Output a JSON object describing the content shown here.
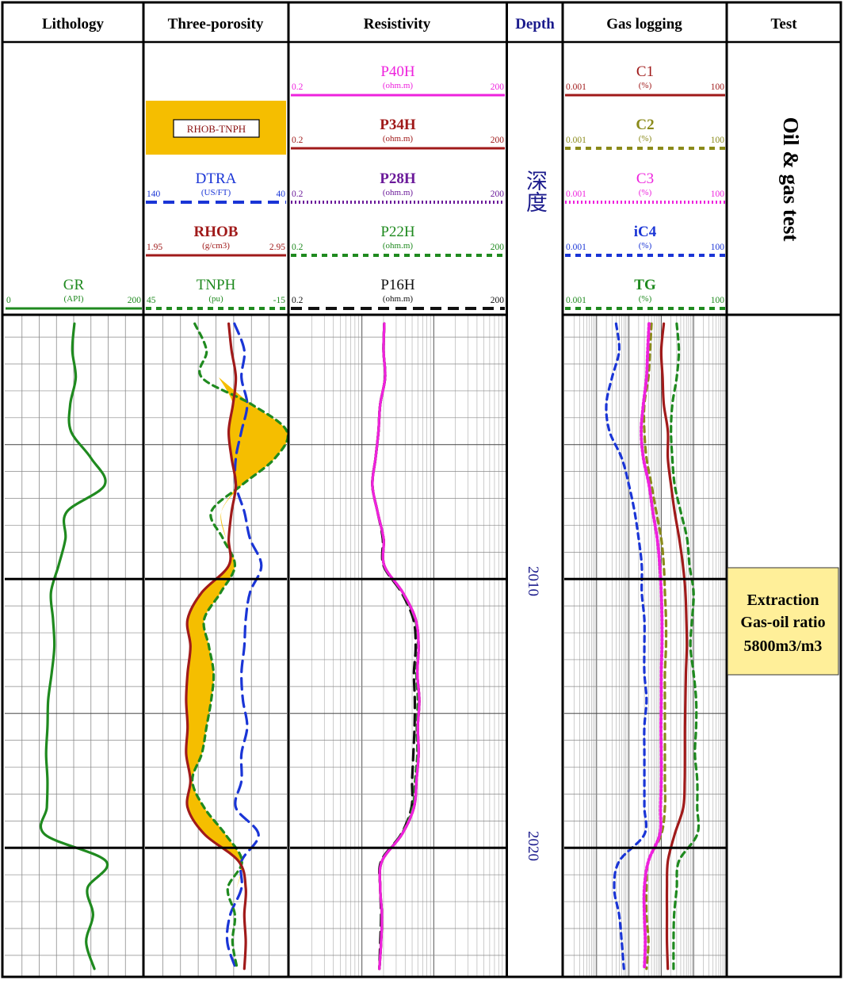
{
  "tracks": {
    "lithology": "Lithology",
    "porosity": "Three-porosity",
    "resistivity": "Resistivity",
    "depth": "Depth",
    "gas": "Gas logging",
    "test": "Test"
  },
  "depth_label": "深度",
  "depth_ticks": [
    "2010",
    "2020"
  ],
  "fill_label": "RHOB-TNPH",
  "test_vertical_text": "Oil & gas test",
  "test_box": {
    "line1": "Extraction",
    "line2": "Gas-oil ratio",
    "line3": "5800m3/m3"
  },
  "colors": {
    "frame": "#000000",
    "grid": "#888888",
    "depth_text": "#1a1a8c",
    "fill": "#f5be00",
    "test_box": "#ffef99"
  },
  "curve_headers": {
    "GR": {
      "name": "GR",
      "unit": "(API)",
      "left": "0",
      "right": "200",
      "color": "#1f8a1f",
      "dash": "solid"
    },
    "DTRA": {
      "name": "DTRA",
      "unit": "(US/FT)",
      "left": "140",
      "right": "40",
      "color": "#1a35d6",
      "dash": "long"
    },
    "RHOB": {
      "name": "RHOB",
      "unit": "(g/cm3)",
      "left": "1.95",
      "right": "2.95",
      "color": "#a01a1a",
      "dash": "solid"
    },
    "TNPH": {
      "name": "TNPH",
      "unit": "(pu)",
      "left": "45",
      "right": "-15",
      "color": "#1f8a1f",
      "dash": "short"
    },
    "P40H": {
      "name": "P40H",
      "unit": "(ohm.m)",
      "left": "0.2",
      "right": "200",
      "color": "#ee22dd",
      "dash": "solid"
    },
    "P34H": {
      "name": "P34H",
      "unit": "(ohm.m)",
      "left": "0.2",
      "right": "200",
      "color": "#a01a1a",
      "dash": "solid"
    },
    "P28H": {
      "name": "P28H",
      "unit": "(ohm.m)",
      "left": "0.2",
      "right": "200",
      "color": "#6b1a9a",
      "dash": "dot"
    },
    "P22H": {
      "name": "P22H",
      "unit": "(ohm.m)",
      "left": "0.2",
      "right": "200",
      "color": "#1f8a1f",
      "dash": "short"
    },
    "P16H": {
      "name": "P16H",
      "unit": "(ohm.m)",
      "left": "0.2",
      "right": "200",
      "color": "#111111",
      "dash": "long"
    },
    "C1": {
      "name": "C1",
      "unit": "(%)",
      "left": "0.001",
      "right": "100",
      "color": "#a01a1a",
      "dash": "solid"
    },
    "C2": {
      "name": "C2",
      "unit": "(%)",
      "left": "0.001",
      "right": "100",
      "color": "#8a8a1a",
      "dash": "short"
    },
    "C3": {
      "name": "C3",
      "unit": "(%)",
      "left": "0.001",
      "right": "100",
      "color": "#ee22dd",
      "dash": "dot"
    },
    "iC4": {
      "name": "iC4",
      "unit": "(%)",
      "left": "0.001",
      "right": "100",
      "color": "#1a35d6",
      "dash": "short"
    },
    "TG": {
      "name": "TG",
      "unit": "(%)",
      "left": "0.001",
      "right": "100",
      "color": "#1f8a1f",
      "dash": "short"
    }
  },
  "chart_data": {
    "type": "line",
    "depth_range": [
      2000.2,
      2024.8
    ],
    "depth": [
      2000.5,
      2001.5,
      2002.5,
      2003.5,
      2004.5,
      2005.5,
      2006.5,
      2007.5,
      2008.5,
      2009.5,
      2010.5,
      2011.5,
      2012.5,
      2013.5,
      2014.5,
      2015.5,
      2016.5,
      2017.5,
      2018.5,
      2019.5,
      2020.5,
      2021.5,
      2022.5,
      2023.5,
      2024.5
    ],
    "series": [
      {
        "name": "GR",
        "unit": "API",
        "scale": [
          0,
          200
        ],
        "log": false,
        "values": [
          101,
          98,
          103,
          95,
          96,
          125,
          145,
          90,
          88,
          78,
          67,
          70,
          72,
          68,
          63,
          62,
          60,
          62,
          61,
          58,
          147,
          120,
          128,
          118,
          130
        ]
      },
      {
        "name": "TNPH",
        "unit": "pu",
        "scale": [
          45,
          -15
        ],
        "log": false,
        "values": [
          24,
          19,
          21,
          0,
          -15,
          -10,
          4,
          17,
          12,
          7,
          13,
          20,
          18,
          16,
          17,
          19,
          21,
          25,
          20,
          11,
          4,
          10,
          7,
          8,
          6
        ]
      },
      {
        "name": "DTRA",
        "unit": "US/FT",
        "scale": [
          140,
          40
        ],
        "log": false,
        "values": [
          77,
          70,
          72,
          68,
          72,
          76,
          76,
          70,
          66,
          58,
          66,
          69,
          70,
          72,
          71,
          68,
          72,
          72,
          76,
          60,
          72,
          72,
          80,
          82,
          76
        ]
      },
      {
        "name": "RHOB",
        "unit": "g/cm3",
        "scale": [
          1.95,
          2.95
        ],
        "log": false,
        "values": [
          2.54,
          2.56,
          2.59,
          2.57,
          2.54,
          2.56,
          2.59,
          2.56,
          2.54,
          2.54,
          2.35,
          2.25,
          2.27,
          2.25,
          2.24,
          2.25,
          2.24,
          2.27,
          2.25,
          2.37,
          2.61,
          2.66,
          2.65,
          2.66,
          2.65
        ]
      },
      {
        "name": "P40H",
        "unit": "ohm.m",
        "scale": [
          0.2,
          200
        ],
        "log": true,
        "values": [
          4.1,
          4.0,
          4.2,
          3.6,
          3.4,
          3.1,
          2.8,
          3.3,
          4.0,
          4.1,
          7.4,
          11.2,
          12.3,
          11.8,
          12.6,
          12.0,
          12.3,
          11.5,
          10.6,
          7.2,
          3.8,
          3.6,
          3.8,
          3.7,
          3.5
        ]
      },
      {
        "name": "P34H",
        "unit": "ohm.m",
        "scale": [
          0.2,
          200
        ],
        "log": true,
        "values": [
          4.1,
          4.0,
          4.2,
          3.6,
          3.4,
          3.1,
          2.8,
          3.3,
          4.0,
          4.1,
          7.4,
          11.2,
          12.3,
          11.8,
          12.6,
          12.0,
          12.3,
          11.5,
          10.6,
          7.2,
          3.8,
          3.6,
          3.8,
          3.7,
          3.5
        ]
      },
      {
        "name": "P28H",
        "unit": "ohm.m",
        "scale": [
          0.2,
          200
        ],
        "log": true,
        "values": [
          4.1,
          4.0,
          4.2,
          3.6,
          3.4,
          3.1,
          2.8,
          3.3,
          4.0,
          4.1,
          7.4,
          11.2,
          12.3,
          11.8,
          12.6,
          12.0,
          12.3,
          11.5,
          10.6,
          7.2,
          3.8,
          3.6,
          3.8,
          3.7,
          3.5
        ]
      },
      {
        "name": "P22H",
        "unit": "ohm.m",
        "scale": [
          0.2,
          200
        ],
        "log": true,
        "values": [
          4.1,
          4.0,
          4.2,
          3.6,
          3.4,
          3.1,
          2.8,
          3.3,
          4.0,
          4.1,
          7.3,
          11.0,
          12.1,
          11.5,
          12.0,
          11.6,
          11.8,
          11.0,
          10.2,
          7.1,
          3.8,
          3.6,
          3.8,
          3.7,
          3.5
        ]
      },
      {
        "name": "P16H",
        "unit": "ohm.m",
        "scale": [
          0.2,
          200
        ],
        "log": true,
        "values": [
          4.1,
          4.0,
          4.2,
          3.6,
          3.4,
          3.1,
          2.8,
          3.3,
          3.9,
          4.0,
          7.1,
          10.4,
          11.2,
          10.6,
          10.9,
          10.8,
          10.4,
          10.0,
          9.8,
          7.0,
          3.7,
          3.6,
          3.7,
          3.6,
          3.5
        ]
      },
      {
        "name": "C1",
        "unit": "%",
        "scale": [
          0.001,
          100
        ],
        "log": true,
        "values": [
          1.2,
          1.0,
          1.1,
          1.2,
          1.6,
          1.6,
          2.0,
          2.6,
          3.6,
          4.7,
          5.6,
          6.0,
          6.2,
          5.8,
          5.6,
          5.4,
          5.4,
          5.3,
          4.8,
          2.6,
          1.6,
          1.5,
          1.5,
          1.5,
          1.6
        ]
      },
      {
        "name": "C2",
        "unit": "%",
        "scale": [
          0.001,
          100
        ],
        "log": true,
        "values": [
          0.5,
          0.45,
          0.4,
          0.3,
          0.3,
          0.35,
          0.5,
          0.7,
          1.0,
          1.2,
          1.3,
          1.4,
          1.4,
          1.3,
          1.3,
          1.3,
          1.3,
          1.3,
          1.3,
          1.0,
          0.4,
          0.35,
          0.35,
          0.4,
          0.35
        ]
      },
      {
        "name": "C3",
        "unit": "%",
        "scale": [
          0.001,
          100
        ],
        "log": true,
        "values": [
          0.42,
          0.38,
          0.35,
          0.28,
          0.24,
          0.28,
          0.42,
          0.55,
          0.75,
          0.9,
          1.0,
          1.05,
          1.05,
          1.0,
          1.0,
          0.98,
          1.0,
          1.0,
          0.95,
          0.9,
          0.4,
          0.3,
          0.3,
          0.32,
          0.3
        ]
      },
      {
        "name": "iC4",
        "unit": "%",
        "scale": [
          0.001,
          100
        ],
        "log": true,
        "values": [
          0.04,
          0.05,
          0.03,
          0.02,
          0.025,
          0.06,
          0.1,
          0.15,
          0.2,
          0.25,
          0.25,
          0.3,
          0.3,
          0.3,
          0.35,
          0.3,
          0.3,
          0.3,
          0.3,
          0.3,
          0.05,
          0.035,
          0.05,
          0.06,
          0.07
        ]
      },
      {
        "name": "TG",
        "unit": "%",
        "scale": [
          0.001,
          100
        ],
        "log": true,
        "values": [
          3.0,
          3.5,
          3.0,
          2.2,
          2.0,
          2.2,
          2.6,
          4.0,
          6.3,
          7.5,
          10.0,
          9.0,
          8.0,
          10.0,
          12.0,
          12.0,
          11.0,
          13.0,
          13.0,
          13.0,
          3.5,
          3.0,
          2.5,
          2.4,
          2.4
        ]
      }
    ]
  }
}
